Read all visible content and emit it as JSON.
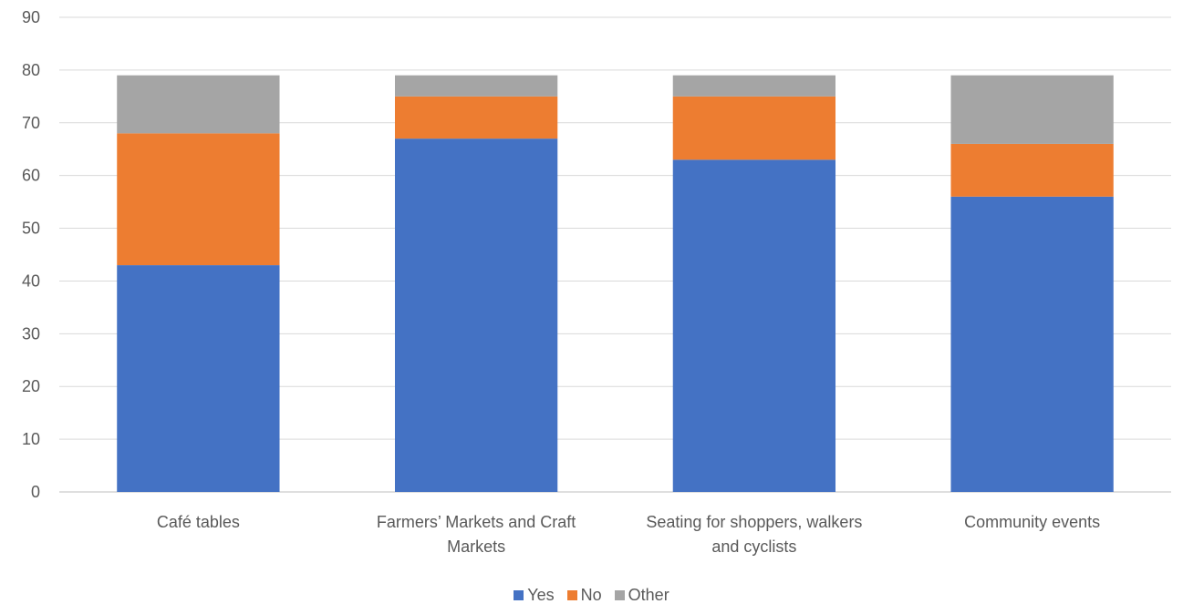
{
  "chart_data": {
    "type": "bar",
    "stacked": true,
    "categories": [
      [
        "Café tables"
      ],
      [
        "Farmers’ Markets and Craft",
        "Markets"
      ],
      [
        "Seating for shoppers, walkers",
        "and cyclists"
      ],
      [
        "Community events"
      ]
    ],
    "series": [
      {
        "name": "Yes",
        "color": "#4472C4",
        "values": [
          43,
          67,
          63,
          56
        ]
      },
      {
        "name": "No",
        "color": "#ED7D31",
        "values": [
          25,
          8,
          12,
          10
        ]
      },
      {
        "name": "Other",
        "color": "#A5A5A5",
        "values": [
          11,
          4,
          4,
          13
        ]
      }
    ],
    "ylim": [
      0,
      90
    ],
    "yticks": [
      0,
      10,
      20,
      30,
      40,
      50,
      60,
      70,
      80,
      90
    ],
    "grid": true,
    "legend_position": "bottom"
  }
}
